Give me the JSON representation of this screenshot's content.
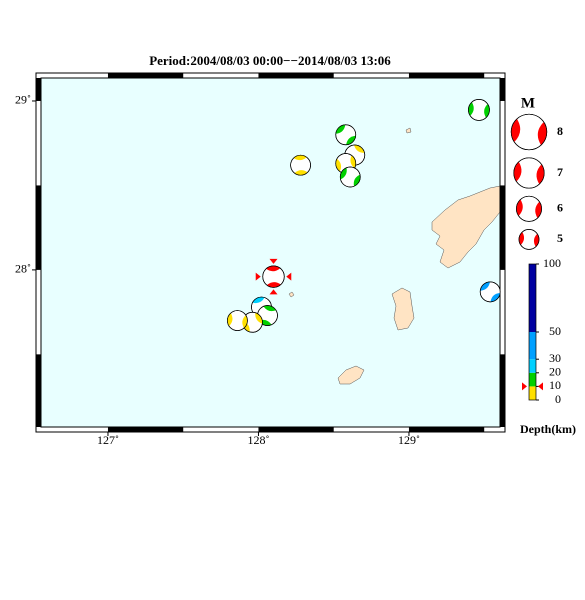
{
  "map": {
    "title": "Period:2004/08/03 00:00−−2014/08/03 13:06",
    "xlim": [
      126.555,
      129.605
    ],
    "ylim": [
      27.07,
      29.136
    ],
    "xticks": [
      {
        "value": 127,
        "label": "127˚"
      },
      {
        "value": 128,
        "label": "128˚"
      },
      {
        "value": 129,
        "label": "129˚"
      }
    ],
    "yticks": [
      {
        "value": 28,
        "label": "28˚"
      },
      {
        "value": 29,
        "label": "29˚"
      }
    ],
    "sea_color": "#e8ffff",
    "land_color": "#ffe4c4",
    "highlight_color": "#ff0000",
    "events": [
      {
        "lon": 129.465,
        "lat": 28.947,
        "mag": 5.2,
        "depth": 15
      },
      {
        "lon": 128.58,
        "lat": 28.8,
        "mag": 5.0,
        "depth": 15
      },
      {
        "lon": 128.28,
        "lat": 28.62,
        "mag": 5.0,
        "depth": 5
      },
      {
        "lon": 128.64,
        "lat": 28.68,
        "mag": 5.0,
        "depth": 5
      },
      {
        "lon": 128.58,
        "lat": 28.63,
        "mag": 5.0,
        "depth": 5
      },
      {
        "lon": 128.61,
        "lat": 28.55,
        "mag": 5.0,
        "depth": 15
      },
      {
        "lon": 128.02,
        "lat": 27.78,
        "mag": 5.0,
        "depth": 25
      },
      {
        "lon": 128.06,
        "lat": 27.73,
        "mag": 5.0,
        "depth": 15
      },
      {
        "lon": 127.96,
        "lat": 27.69,
        "mag": 5.0,
        "depth": 5
      },
      {
        "lon": 127.86,
        "lat": 27.7,
        "mag": 5.0,
        "depth": 5
      },
      {
        "lon": 129.54,
        "lat": 27.87,
        "mag": 5.0,
        "depth": 40
      },
      {
        "lon": 128.1,
        "lat": 27.96,
        "mag": 5.3,
        "depth": 10,
        "highlight": true
      }
    ],
    "legend": {
      "title": "M",
      "magnitudes": [
        8,
        7,
        6,
        5
      ]
    },
    "depth_scale": {
      "label": "Depth(km)",
      "ticks": [
        0,
        10,
        20,
        30,
        50,
        100
      ],
      "colors": [
        "#ffe000",
        "#00d000",
        "#00d0ff",
        "#00a0ff",
        "#0000a0"
      ]
    }
  }
}
